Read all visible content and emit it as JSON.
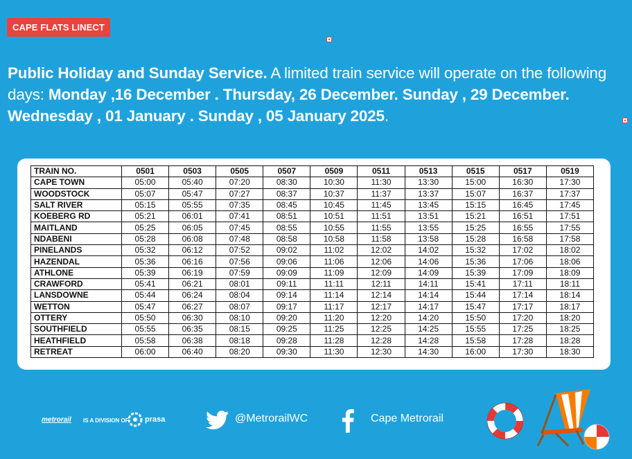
{
  "badge": "CAPE FLATS LINECT",
  "notice": {
    "lead": "Public Holiday and Sunday  Service.",
    "text": " A limited train service will operate on the following days: ",
    "dates": "Monday ,16 December . Thursday, 26 December. Sunday , 29 December. Wednesday , 01 January . Sunday , 05 January 2025",
    "end": "."
  },
  "timetable": {
    "header": [
      "TRAIN NO.",
      "0501",
      "0503",
      "0505",
      "0507",
      "0509",
      "0511",
      "0513",
      "0515",
      "0517",
      "0519"
    ],
    "rows": [
      [
        "CAPE TOWN",
        "05:00",
        "05:40",
        "07:20",
        "08:30",
        "10:30",
        "11:30",
        "13:30",
        "15:00",
        "16:30",
        "17:30"
      ],
      [
        "WOODSTOCK",
        "05:07",
        "05:47",
        "07:27",
        "08:37",
        "10:37",
        "11:37",
        "13:37",
        "15:07",
        "16:37",
        "17:37"
      ],
      [
        "SALT RIVER",
        "05:15",
        "05:55",
        "07:35",
        "08:45",
        "10:45",
        "11:45",
        "13:45",
        "15:15",
        "16:45",
        "17:45"
      ],
      [
        "KOEBERG RD",
        "05:21",
        "06:01",
        "07:41",
        "08:51",
        "10:51",
        "11:51",
        "13:51",
        "15:21",
        "16:51",
        "17:51"
      ],
      [
        "MAITLAND",
        "05:25",
        "06:05",
        "07:45",
        "08:55",
        "10:55",
        "11:55",
        "13:55",
        "15:25",
        "16:55",
        "17:55"
      ],
      [
        "NDABENI",
        "05:28",
        "06:08",
        "07:48",
        "08:58",
        "10:58",
        "11:58",
        "13:58",
        "15:28",
        "16:58",
        "17:58"
      ],
      [
        "PINELANDS",
        "05:32",
        "06:12",
        "07:52",
        "09:02",
        "11:02",
        "12:02",
        "14:02",
        "15:32",
        "17:02",
        "18:02"
      ],
      [
        "HAZENDAL",
        "05:36",
        "06:16",
        "07:56",
        "09:06",
        "11:06",
        "12:06",
        "14:06",
        "15:36",
        "17:06",
        "18:06"
      ],
      [
        "ATHLONE",
        "05:39",
        "06:19",
        "07:59",
        "09:09",
        "11:09",
        "12:09",
        "14:09",
        "15:39",
        "17:09",
        "18:09"
      ],
      [
        "CRAWFORD",
        "05:41",
        "06:21",
        "08:01",
        "09:11",
        "11:11",
        "12:11",
        "14:11",
        "15:41",
        "17:11",
        "18:11"
      ],
      [
        "LANSDOWNE",
        "05:44",
        "06:24",
        "08:04",
        "09:14",
        "11:14",
        "12:14",
        "14:14",
        "15:44",
        "17:14",
        "18:14"
      ],
      [
        "WETTON",
        "05:47",
        "06:27",
        "08:07",
        "09:17",
        "11:17",
        "12:17",
        "14:17",
        "15:47",
        "17:17",
        "18:17"
      ],
      [
        "OTTERY",
        "05:50",
        "06:30",
        "08:10",
        "09:20",
        "11:20",
        "12:20",
        "14:20",
        "15:50",
        "17:20",
        "18:20"
      ],
      [
        "SOUTHFIELD",
        "05:55",
        "06:35",
        "08:15",
        "09:25",
        "11:25",
        "12:25",
        "14:25",
        "15:55",
        "17:25",
        "18:25"
      ],
      [
        "HEATHFIELD",
        "05:58",
        "06:38",
        "08:18",
        "09:28",
        "11:28",
        "12:28",
        "14:28",
        "15:58",
        "17:28",
        "18:28"
      ],
      [
        "RETREAT",
        "06:00",
        "06:40",
        "08:20",
        "09:30",
        "11:30",
        "12:30",
        "14:30",
        "16:00",
        "17:30",
        "18:30"
      ]
    ]
  },
  "footer": {
    "brand": "metrorail",
    "division": "IS A DIVISION OF",
    "prasa": "prasa",
    "twitter": "@MetrorailWC",
    "facebook": "Cape Metrorail"
  },
  "colors": {
    "background": "#1fa2dc",
    "badge": "#e9443c"
  }
}
